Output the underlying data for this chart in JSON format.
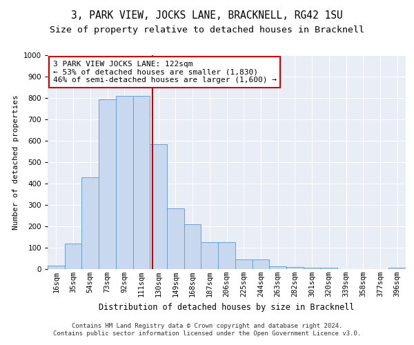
{
  "title": "3, PARK VIEW, JOCKS LANE, BRACKNELL, RG42 1SU",
  "subtitle": "Size of property relative to detached houses in Bracknell",
  "xlabel": "Distribution of detached houses by size in Bracknell",
  "ylabel": "Number of detached properties",
  "bar_color": "#c8d8ee",
  "bar_edge_color": "#6a9fd0",
  "background_color": "#e8edf6",
  "grid_color": "#ffffff",
  "categories": [
    "16sqm",
    "35sqm",
    "54sqm",
    "73sqm",
    "92sqm",
    "111sqm",
    "130sqm",
    "149sqm",
    "168sqm",
    "187sqm",
    "206sqm",
    "225sqm",
    "244sqm",
    "263sqm",
    "282sqm",
    "301sqm",
    "320sqm",
    "339sqm",
    "358sqm",
    "377sqm",
    "396sqm"
  ],
  "values": [
    15,
    120,
    430,
    795,
    810,
    810,
    585,
    285,
    210,
    125,
    125,
    45,
    45,
    12,
    10,
    8,
    5,
    0,
    0,
    0,
    5
  ],
  "ylim": [
    0,
    1000
  ],
  "yticks": [
    0,
    100,
    200,
    300,
    400,
    500,
    600,
    700,
    800,
    900,
    1000
  ],
  "property_line_x": 5.65,
  "property_line_color": "#cc0000",
  "annotation_text": "3 PARK VIEW JOCKS LANE: 122sqm\n← 53% of detached houses are smaller (1,830)\n46% of semi-detached houses are larger (1,600) →",
  "annotation_box_color": "#ffffff",
  "annotation_box_edge_color": "#cc0000",
  "footer_line1": "Contains HM Land Registry data © Crown copyright and database right 2024.",
  "footer_line2": "Contains public sector information licensed under the Open Government Licence v3.0.",
  "title_fontsize": 10.5,
  "subtitle_fontsize": 9.5,
  "annotation_fontsize": 8,
  "footer_fontsize": 6.5,
  "tick_fontsize": 7.5,
  "ylabel_fontsize": 8,
  "xlabel_fontsize": 8.5
}
